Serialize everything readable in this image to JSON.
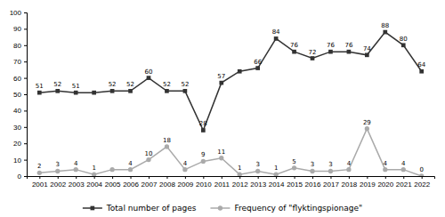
{
  "chart_data": {
    "type": "line",
    "x": [
      2001,
      2002,
      2003,
      2004,
      2005,
      2006,
      2007,
      2008,
      2009,
      2010,
      2011,
      2012,
      2013,
      2014,
      2015,
      2016,
      2017,
      2018,
      2019,
      2020,
      2021,
      2022
    ],
    "series": [
      {
        "name": "Total number of pages",
        "color": "#333333",
        "marker": "square",
        "values": [
          51,
          52,
          51,
          51,
          52,
          52,
          60,
          52,
          52,
          28,
          57,
          64,
          66,
          84,
          76,
          72,
          76,
          76,
          74,
          88,
          80,
          64
        ],
        "value_labels": [
          "51",
          "52",
          "51",
          null,
          "52",
          "52",
          "60",
          "52",
          "52",
          "28",
          "57",
          null,
          "66",
          "84",
          "76",
          "72",
          "76",
          "76",
          "74",
          "88",
          "80",
          "64"
        ]
      },
      {
        "name": "Frequency of \"flyktingspionage\"",
        "color": "#aaaaaa",
        "marker": "circle",
        "values": [
          2,
          3,
          4,
          1,
          4,
          4,
          10,
          18,
          4,
          9,
          11,
          1,
          3,
          1,
          5,
          3,
          3,
          4,
          29,
          4,
          4,
          0
        ],
        "value_labels": [
          "2",
          "3",
          "4",
          "1",
          null,
          "4",
          "10",
          "18",
          "4",
          "9",
          "11",
          "1",
          "3",
          "1",
          "5",
          "3",
          "3",
          "4",
          "29",
          "4",
          "4",
          "0"
        ]
      }
    ],
    "xlim": [
      2000.3,
      2022.7
    ],
    "xticks": [
      2001,
      2002,
      2003,
      2004,
      2005,
      2006,
      2007,
      2008,
      2009,
      2010,
      2011,
      2012,
      2013,
      2014,
      2015,
      2016,
      2017,
      2018,
      2019,
      2020,
      2021,
      2022
    ],
    "ylim": [
      0,
      100
    ],
    "yticks": [
      0,
      10,
      20,
      30,
      40,
      50,
      60,
      70,
      80,
      90,
      100
    ],
    "data_labels": true,
    "grid": false,
    "legend": "bottom"
  }
}
